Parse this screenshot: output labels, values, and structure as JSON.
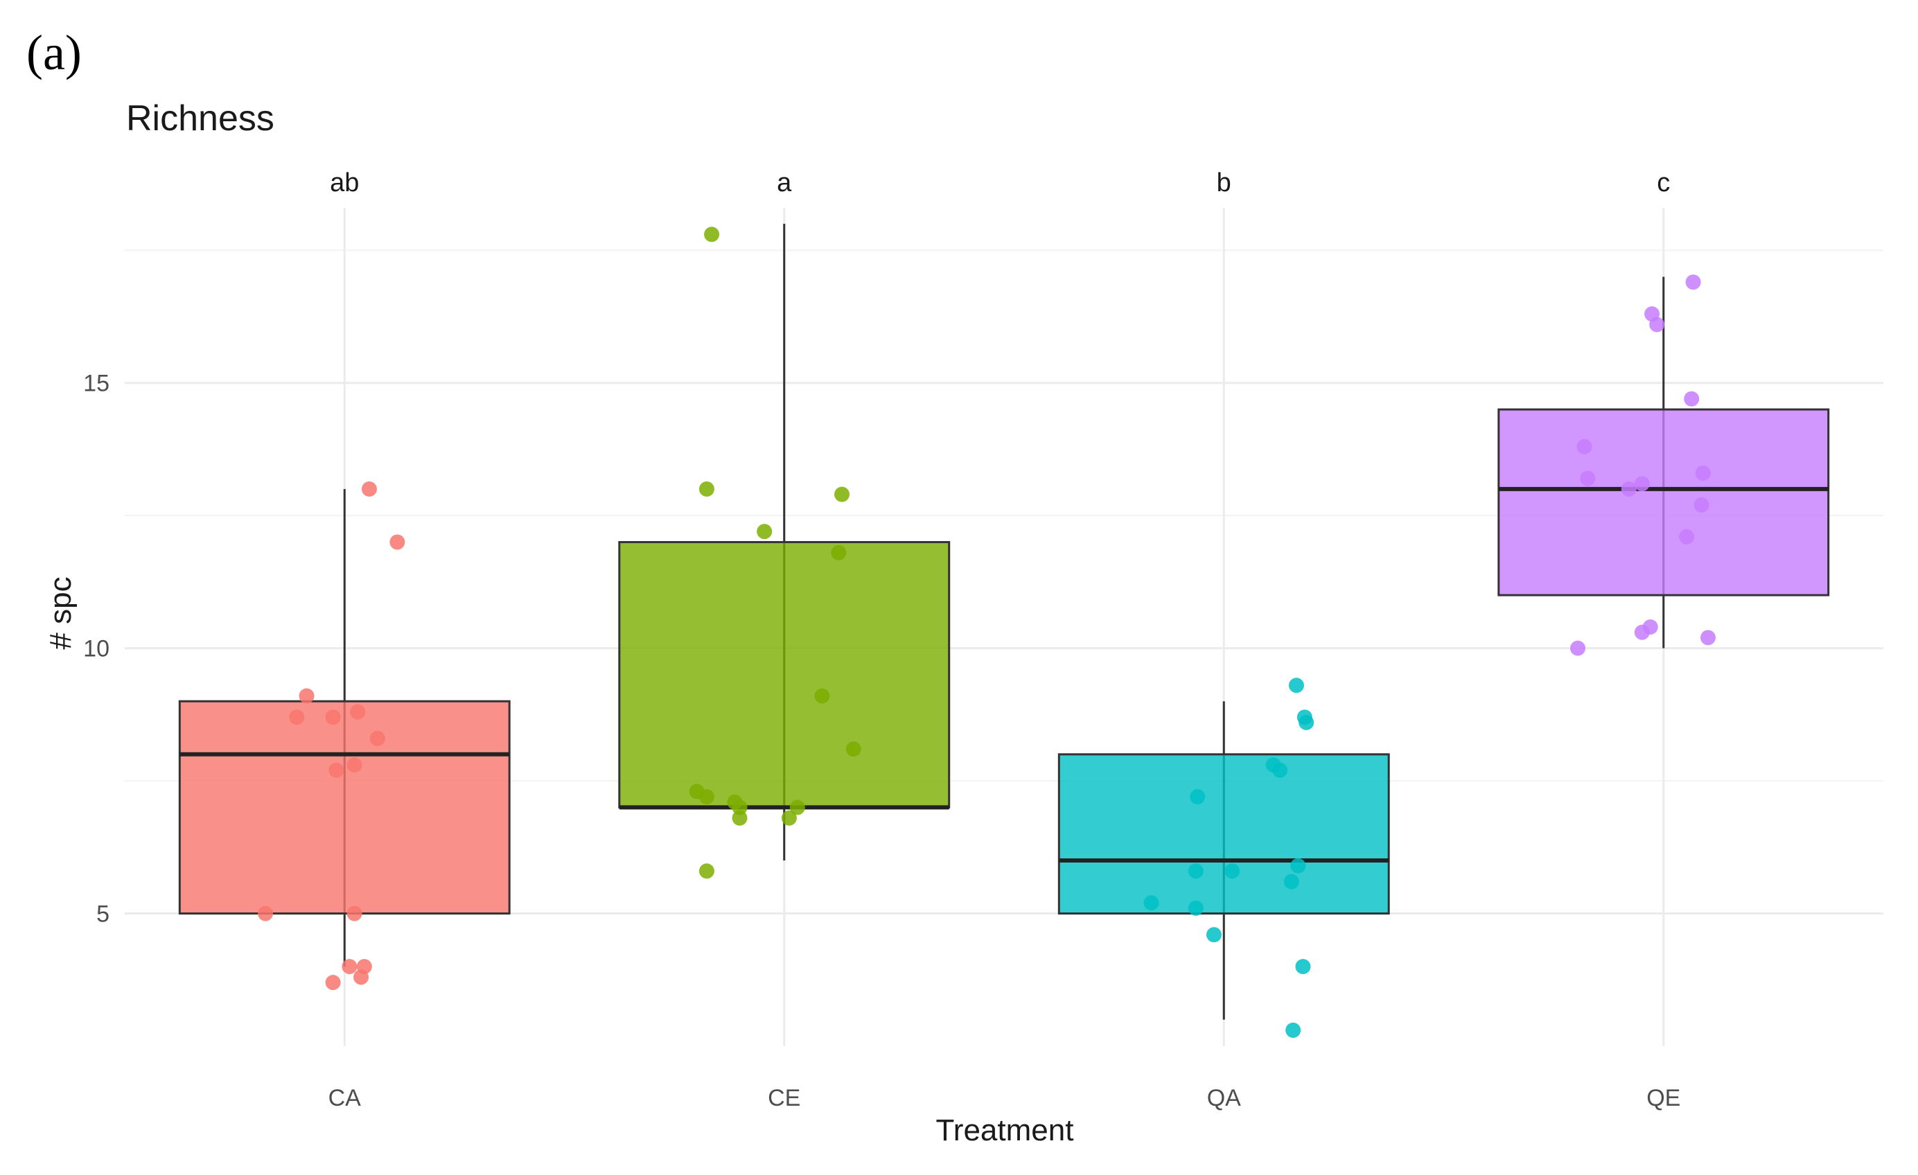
{
  "panel_label": "(a)",
  "chart_data": {
    "type": "boxplot",
    "title": "Richness",
    "xlabel": "Treatment",
    "ylabel": "# spc",
    "ylim": [
      2.5,
      18.3
    ],
    "yticks": [
      5,
      10,
      15
    ],
    "yminor": [
      7.5,
      12.5,
      17.5
    ],
    "grid": true,
    "legend": "none",
    "categories": [
      "CA",
      "CE",
      "QA",
      "QE"
    ],
    "significance_letters": [
      "ab",
      "a",
      "b",
      "c"
    ],
    "colors": [
      "#F8766D",
      "#7CAE00",
      "#00BFC4",
      "#C77CFF"
    ],
    "boxes": [
      {
        "name": "CA",
        "whisker_low": 4,
        "q1": 5,
        "median": 8,
        "q3": 9,
        "whisker_high": 13
      },
      {
        "name": "CE",
        "whisker_low": 6,
        "q1": 7,
        "median": 7,
        "q3": 12,
        "whisker_high": 18
      },
      {
        "name": "QA",
        "whisker_low": 3,
        "q1": 5,
        "median": 6,
        "q3": 8,
        "whisker_high": 9
      },
      {
        "name": "QE",
        "whisker_low": 10,
        "q1": 11,
        "median": 13,
        "q3": 14.5,
        "whisker_high": 17
      }
    ],
    "points": [
      {
        "group": "CA",
        "offsets": [
          0.15,
          0.32,
          -0.23,
          -0.29,
          -0.07,
          0.08,
          0.2,
          0.06,
          -0.05,
          0.06,
          0.12,
          -0.48,
          0.03,
          0.1,
          -0.07
        ],
        "values": [
          13,
          12,
          9.1,
          8.7,
          8.7,
          8.8,
          8.3,
          7.8,
          7.7,
          5,
          4,
          5,
          4,
          3.8,
          3.7
        ]
      },
      {
        "group": "CE",
        "offsets": [
          -0.44,
          -0.47,
          0.35,
          -0.12,
          0.33,
          0.23,
          0.42,
          -0.53,
          -0.47,
          -0.3,
          -0.27,
          0.08,
          -0.27,
          -0.47,
          0.03
        ],
        "values": [
          17.8,
          13,
          12.9,
          12.2,
          11.8,
          9.1,
          8.1,
          7.3,
          7.2,
          7.1,
          6.8,
          7,
          7,
          5.8,
          6.8
        ]
      },
      {
        "group": "QA",
        "offsets": [
          0.44,
          0.49,
          0.5,
          0.34,
          0.3,
          -0.16,
          0.45,
          -0.17,
          0.05,
          0.41,
          -0.44,
          -0.17,
          -0.06,
          0.48,
          0.42
        ],
        "values": [
          9.3,
          8.7,
          8.6,
          7.7,
          7.8,
          7.2,
          5.9,
          5.8,
          5.8,
          5.6,
          5.2,
          5.1,
          4.6,
          4,
          2.8
        ]
      },
      {
        "group": "QE",
        "offsets": [
          0.18,
          -0.07,
          -0.04,
          0.17,
          -0.48,
          0.24,
          -0.46,
          -0.13,
          -0.21,
          0.23,
          0.14,
          -0.08,
          -0.13,
          0.27,
          -0.52
        ],
        "values": [
          16.9,
          16.3,
          16.1,
          14.7,
          13.8,
          13.3,
          13.2,
          13.1,
          13,
          12.7,
          12.1,
          10.4,
          10.3,
          10.2,
          10
        ]
      }
    ]
  }
}
